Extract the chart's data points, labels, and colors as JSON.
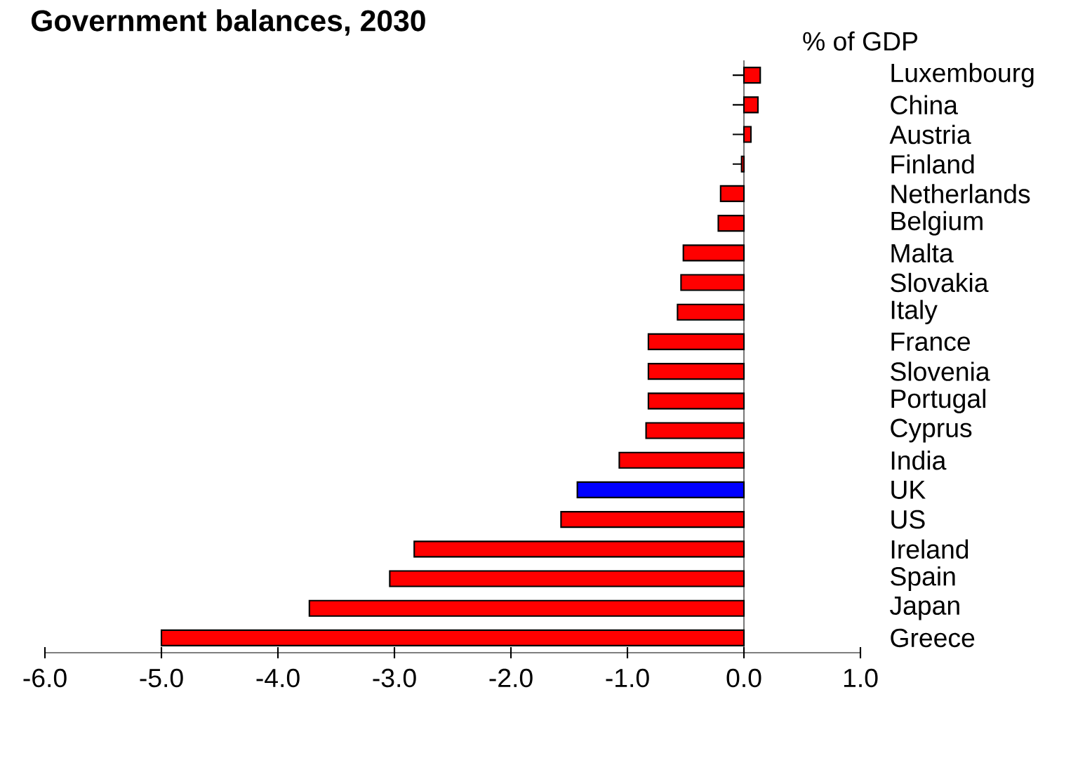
{
  "chart_data": {
    "type": "bar",
    "orientation": "horizontal",
    "title": "Government balances, 2030",
    "ylabel": "% of GDP",
    "categories": [
      "Luxembourg",
      "China",
      "Austria",
      "Finland",
      "Netherlands",
      "Belgium",
      "Malta",
      "Slovakia",
      "Italy",
      "France",
      "Slovenia",
      "Portugal",
      "Cyprus",
      "India",
      "UK",
      "US",
      "Ireland",
      "Spain",
      "Japan",
      "Greece"
    ],
    "values": [
      0.14,
      0.12,
      0.06,
      -0.02,
      -0.2,
      -0.22,
      -0.52,
      -0.54,
      -0.57,
      -0.82,
      -0.82,
      -0.82,
      -0.84,
      -1.07,
      -1.43,
      -1.57,
      -2.83,
      -3.04,
      -3.73,
      -5.0
    ],
    "colors": [
      "#ff0000",
      "#ff0000",
      "#ff0000",
      "#ff0000",
      "#ff0000",
      "#ff0000",
      "#ff0000",
      "#ff0000",
      "#ff0000",
      "#ff0000",
      "#ff0000",
      "#ff0000",
      "#ff0000",
      "#ff0000",
      "#0000ff",
      "#ff0000",
      "#ff0000",
      "#ff0000",
      "#ff0000",
      "#ff0000"
    ],
    "xlim": [
      -6,
      1
    ],
    "xticks": [
      {
        "value": -6,
        "label": "-6.0"
      },
      {
        "value": -5,
        "label": "-5.0"
      },
      {
        "value": -4,
        "label": "-4.0"
      },
      {
        "value": -3,
        "label": "-3.0"
      },
      {
        "value": -2,
        "label": "-2.0"
      },
      {
        "value": -1,
        "label": "-1.0"
      },
      {
        "value": 0,
        "label": "0.0"
      },
      {
        "value": 1,
        "label": "1.0"
      }
    ]
  }
}
